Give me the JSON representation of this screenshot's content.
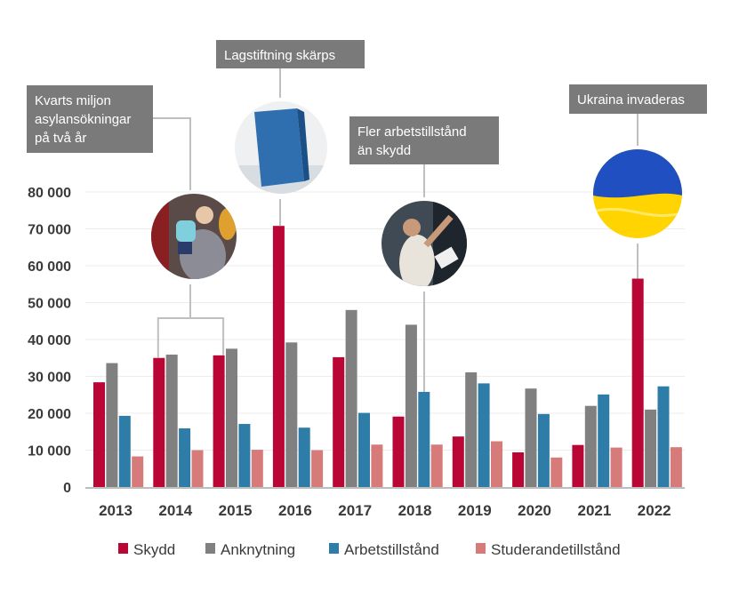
{
  "chart_data": {
    "type": "bar",
    "categories": [
      "2013",
      "2014",
      "2015",
      "2016",
      "2017",
      "2018",
      "2019",
      "2020",
      "2021",
      "2022"
    ],
    "series": [
      {
        "name": "Skydd",
        "color": "#b90635",
        "values": [
          28400,
          35000,
          35700,
          70800,
          35200,
          19100,
          13700,
          9400,
          11400,
          56500
        ]
      },
      {
        "name": "Anknytning",
        "color": "#808080",
        "values": [
          33600,
          35900,
          37500,
          39200,
          48000,
          44000,
          31100,
          26700,
          22000,
          21000
        ]
      },
      {
        "name": "Arbetstillstånd",
        "color": "#2e7ca8",
        "values": [
          19300,
          15900,
          17100,
          16100,
          20100,
          25800,
          28100,
          19800,
          25100,
          27300
        ]
      },
      {
        "name": "Studerandetillstånd",
        "color": "#d67a7a",
        "values": [
          8300,
          10000,
          10100,
          10000,
          11500,
          11500,
          12400,
          8000,
          10700,
          10800
        ]
      }
    ],
    "ylim": [
      0,
      80000
    ],
    "yticks": [
      "0",
      "10 000",
      "20 000",
      "30 000",
      "40 000",
      "50 000",
      "60 000",
      "70 000",
      "80 000"
    ],
    "grid": true,
    "legend": "bottom",
    "annotations": [
      {
        "lines": [
          "Kvarts miljon",
          "asylansökningar",
          "på två år"
        ],
        "image": "refugees-photo",
        "years": [
          "2014",
          "2015"
        ],
        "series": "Skydd"
      },
      {
        "lines": [
          "Lagstiftning skärps"
        ],
        "image": "law-book-photo",
        "years": [
          "2016"
        ],
        "series": "Skydd"
      },
      {
        "lines": [
          "Fler arbetstillstånd",
          "än skydd"
        ],
        "image": "worker-photo",
        "years": [
          "2018"
        ],
        "series": "Arbetstillstånd"
      },
      {
        "lines": [
          "Ukraina invaderas"
        ],
        "image": "ukraine-flag",
        "years": [
          "2022"
        ],
        "series": "Skydd"
      }
    ]
  }
}
